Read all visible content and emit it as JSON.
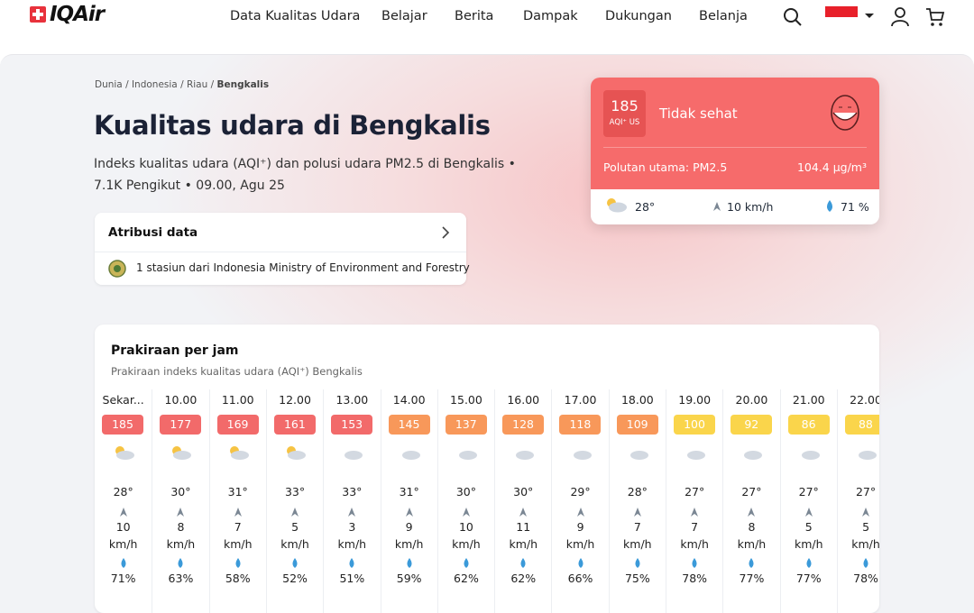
{
  "header": {
    "logo": "IQAir",
    "nav": [
      "Data Kualitas Udara",
      "Belajar",
      "Berita",
      "Dampak",
      "Dukungan",
      "Belanja"
    ]
  },
  "breadcrumb": {
    "path": "Dunia / Indonesia / Riau / ",
    "current": "Bengkalis"
  },
  "title": "Kualitas udara di Bengkalis",
  "subtitle": "Indeks kualitas udara (AQI⁺) dan polusi udara PM2.5 di Bengkalis • 7.1K Pengikut • 09.00, Agu 25",
  "attribution": {
    "title": "Atribusi data",
    "prefix": "1 stasiun dari ",
    "source": "Indonesia Ministry of Environment and Forestry"
  },
  "aqi_card": {
    "aqi": "185",
    "unit": "AQI⁺ US",
    "status": "Tidak sehat",
    "pollutant": "Polutan utama: PM2.5",
    "concentration": "104.4 µg/m³",
    "temperature": "28°",
    "wind": "10 km/h",
    "humidity": "71 %",
    "color": "#f66b6b"
  },
  "forecast": {
    "title": "Prakiraan per jam",
    "subtitle": "Prakiraan indeks kualitas udara (AQI⁺) Bengkalis",
    "wind_unit": "km/h",
    "hours": [
      {
        "time": "Sekar...",
        "aqi": "185",
        "color": "#f26a6a",
        "temp": "28°",
        "wind": "10",
        "humidity": "71%"
      },
      {
        "time": "10.00",
        "aqi": "177",
        "color": "#f26a6a",
        "temp": "30°",
        "wind": "8",
        "humidity": "63%"
      },
      {
        "time": "11.00",
        "aqi": "169",
        "color": "#f26a6a",
        "temp": "31°",
        "wind": "7",
        "humidity": "58%"
      },
      {
        "time": "12.00",
        "aqi": "161",
        "color": "#f26a6a",
        "temp": "33°",
        "wind": "5",
        "humidity": "52%"
      },
      {
        "time": "13.00",
        "aqi": "153",
        "color": "#f26a6a",
        "temp": "33°",
        "wind": "3",
        "humidity": "51%"
      },
      {
        "time": "14.00",
        "aqi": "145",
        "color": "#f8985a",
        "temp": "31°",
        "wind": "9",
        "humidity": "59%"
      },
      {
        "time": "15.00",
        "aqi": "137",
        "color": "#f8985a",
        "temp": "30°",
        "wind": "10",
        "humidity": "62%"
      },
      {
        "time": "16.00",
        "aqi": "128",
        "color": "#f8985a",
        "temp": "30°",
        "wind": "11",
        "humidity": "62%"
      },
      {
        "time": "17.00",
        "aqi": "118",
        "color": "#f8985a",
        "temp": "29°",
        "wind": "9",
        "humidity": "66%"
      },
      {
        "time": "18.00",
        "aqi": "109",
        "color": "#f8985a",
        "temp": "28°",
        "wind": "7",
        "humidity": "75%"
      },
      {
        "time": "19.00",
        "aqi": "100",
        "color": "#fad54b",
        "temp": "27°",
        "wind": "7",
        "humidity": "78%"
      },
      {
        "time": "20.00",
        "aqi": "92",
        "color": "#fad54b",
        "temp": "27°",
        "wind": "8",
        "humidity": "77%"
      },
      {
        "time": "21.00",
        "aqi": "86",
        "color": "#fad54b",
        "temp": "27°",
        "wind": "5",
        "humidity": "77%"
      },
      {
        "time": "22.00",
        "aqi": "88",
        "color": "#fad54b",
        "temp": "27°",
        "wind": "5",
        "humidity": "78%"
      }
    ]
  }
}
